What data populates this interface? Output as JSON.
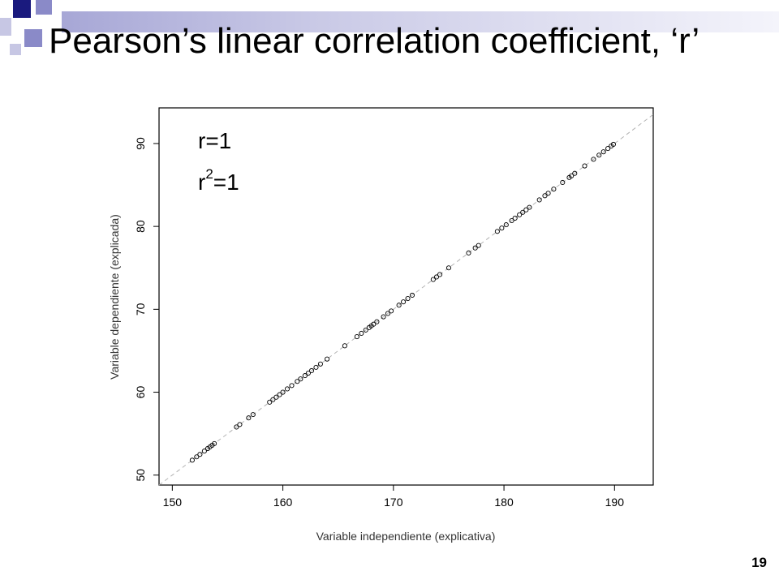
{
  "slide": {
    "title": "Pearson’s linear correlation coefficient, ‘r’",
    "number": "19",
    "colors": {
      "dark_square": "#1a1a7e",
      "mid_square": "#8a8ac8",
      "light_square": "#c7c7e4",
      "bar": "#a7a7d6"
    }
  },
  "chart_data": {
    "type": "scatter",
    "xlabel": "Variable independiente (explicativa)",
    "ylabel": "Variable dependiente (explicada)",
    "xlim": [
      148.8,
      193.5
    ],
    "ylim": [
      48.8,
      94.3
    ],
    "xticks": [
      150,
      160,
      170,
      180,
      190
    ],
    "yticks": [
      50,
      60,
      70,
      80,
      90
    ],
    "grid": false,
    "annotations": {
      "r": "r=1",
      "r2_base": "r",
      "r2_exp": "2",
      "r2_rest": "=1"
    },
    "reference_line": {
      "style": "dashed",
      "color": "#b3b3b3"
    },
    "marker": {
      "shape": "circle-open",
      "color": "#000000"
    },
    "x": [
      151.8,
      152.2,
      152.5,
      152.9,
      153.2,
      153.4,
      153.6,
      153.8,
      155.8,
      156.1,
      156.9,
      157.3,
      158.8,
      159.1,
      159.4,
      159.7,
      160.0,
      160.4,
      160.8,
      161.3,
      161.6,
      162.0,
      162.3,
      162.6,
      163.0,
      163.4,
      164.0,
      165.6,
      166.7,
      167.1,
      167.5,
      167.8,
      168.0,
      168.2,
      168.5,
      169.1,
      169.5,
      169.8,
      170.5,
      170.9,
      171.3,
      171.7,
      173.6,
      173.9,
      174.2,
      175.0,
      176.8,
      177.4,
      177.7,
      179.4,
      179.8,
      180.2,
      180.7,
      181.0,
      181.4,
      181.7,
      182.0,
      182.3,
      183.2,
      183.7,
      184.0,
      184.5,
      185.3,
      185.9,
      186.1,
      186.4,
      187.3,
      188.1,
      188.6,
      189.0,
      189.4,
      189.7,
      189.9
    ],
    "y": [
      51.8,
      52.2,
      52.5,
      52.9,
      53.2,
      53.4,
      53.6,
      53.8,
      55.8,
      56.1,
      56.9,
      57.3,
      58.8,
      59.1,
      59.4,
      59.7,
      60.0,
      60.4,
      60.8,
      61.3,
      61.6,
      62.0,
      62.3,
      62.6,
      63.0,
      63.4,
      64.0,
      65.6,
      66.7,
      67.1,
      67.5,
      67.8,
      68.0,
      68.2,
      68.5,
      69.1,
      69.5,
      69.8,
      70.5,
      70.9,
      71.3,
      71.7,
      73.6,
      73.9,
      74.2,
      75.0,
      76.8,
      77.4,
      77.7,
      79.4,
      79.8,
      80.2,
      80.7,
      81.0,
      81.4,
      81.7,
      82.0,
      82.3,
      83.2,
      83.7,
      84.0,
      84.5,
      85.3,
      85.9,
      86.1,
      86.4,
      87.3,
      88.1,
      88.6,
      89.0,
      89.4,
      89.7,
      89.9
    ]
  }
}
